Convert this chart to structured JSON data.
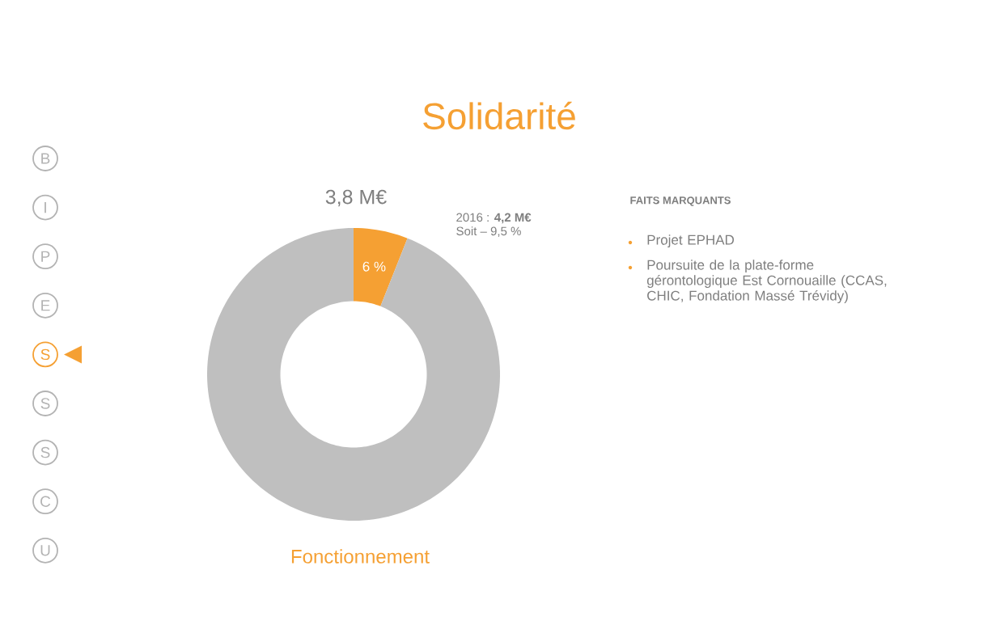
{
  "chart_data": {
    "type": "donut",
    "title": "Solidarité",
    "xlabel": "Fonctionnement",
    "categories": [
      null,
      null
    ],
    "values": [
      6,
      94
    ],
    "colors": [
      "#f5a033",
      "#bfbfbf"
    ],
    "value_labels": [
      "6 %",
      null
    ],
    "annotations": [
      "3,8 M€",
      "2016 : **4,2 M€**",
      "Soit – 9,5 %",
      "FAITS MARQUANTS",
      "Projet EPHAD",
      "Poursuite de la plate-forme gérontologique Est Cornouaille (CCAS, CHIC, Fondation Massé Trévidy)",
      "B",
      "I",
      "P",
      "E",
      "S",
      "S",
      "S",
      "C",
      "U"
    ]
  }
}
